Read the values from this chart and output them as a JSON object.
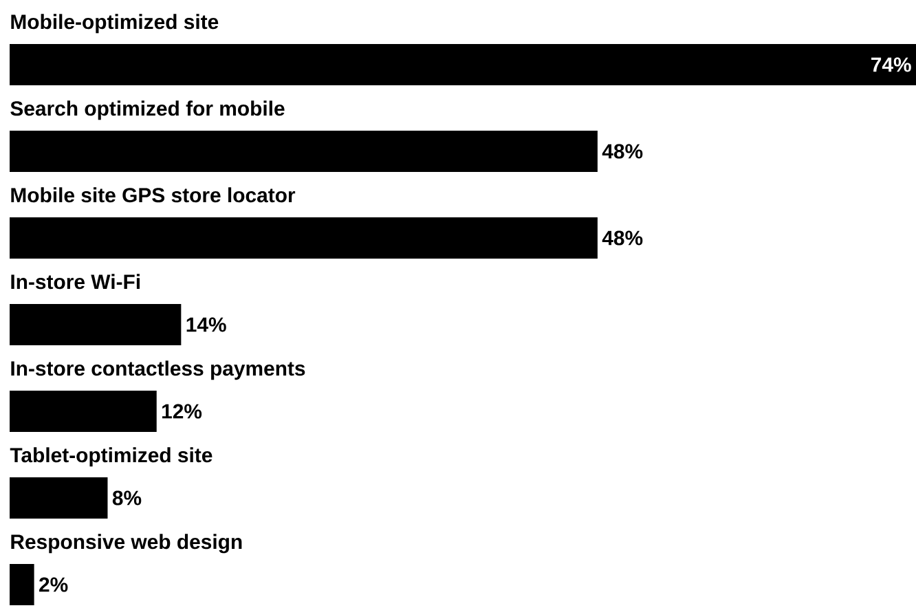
{
  "chart_data": {
    "type": "bar",
    "orientation": "horizontal",
    "categories": [
      "Mobile-optimized site",
      "Search optimized for mobile",
      "Mobile site GPS store locator",
      "In-store Wi-Fi",
      "In-store contactless payments",
      "Tablet-optimized site",
      "Responsive web design"
    ],
    "values": [
      74,
      48,
      48,
      14,
      12,
      8,
      2
    ],
    "value_labels": [
      "74%",
      "48%",
      "48%",
      "14%",
      "12%",
      "8%",
      "2%"
    ],
    "color": "#000000"
  }
}
